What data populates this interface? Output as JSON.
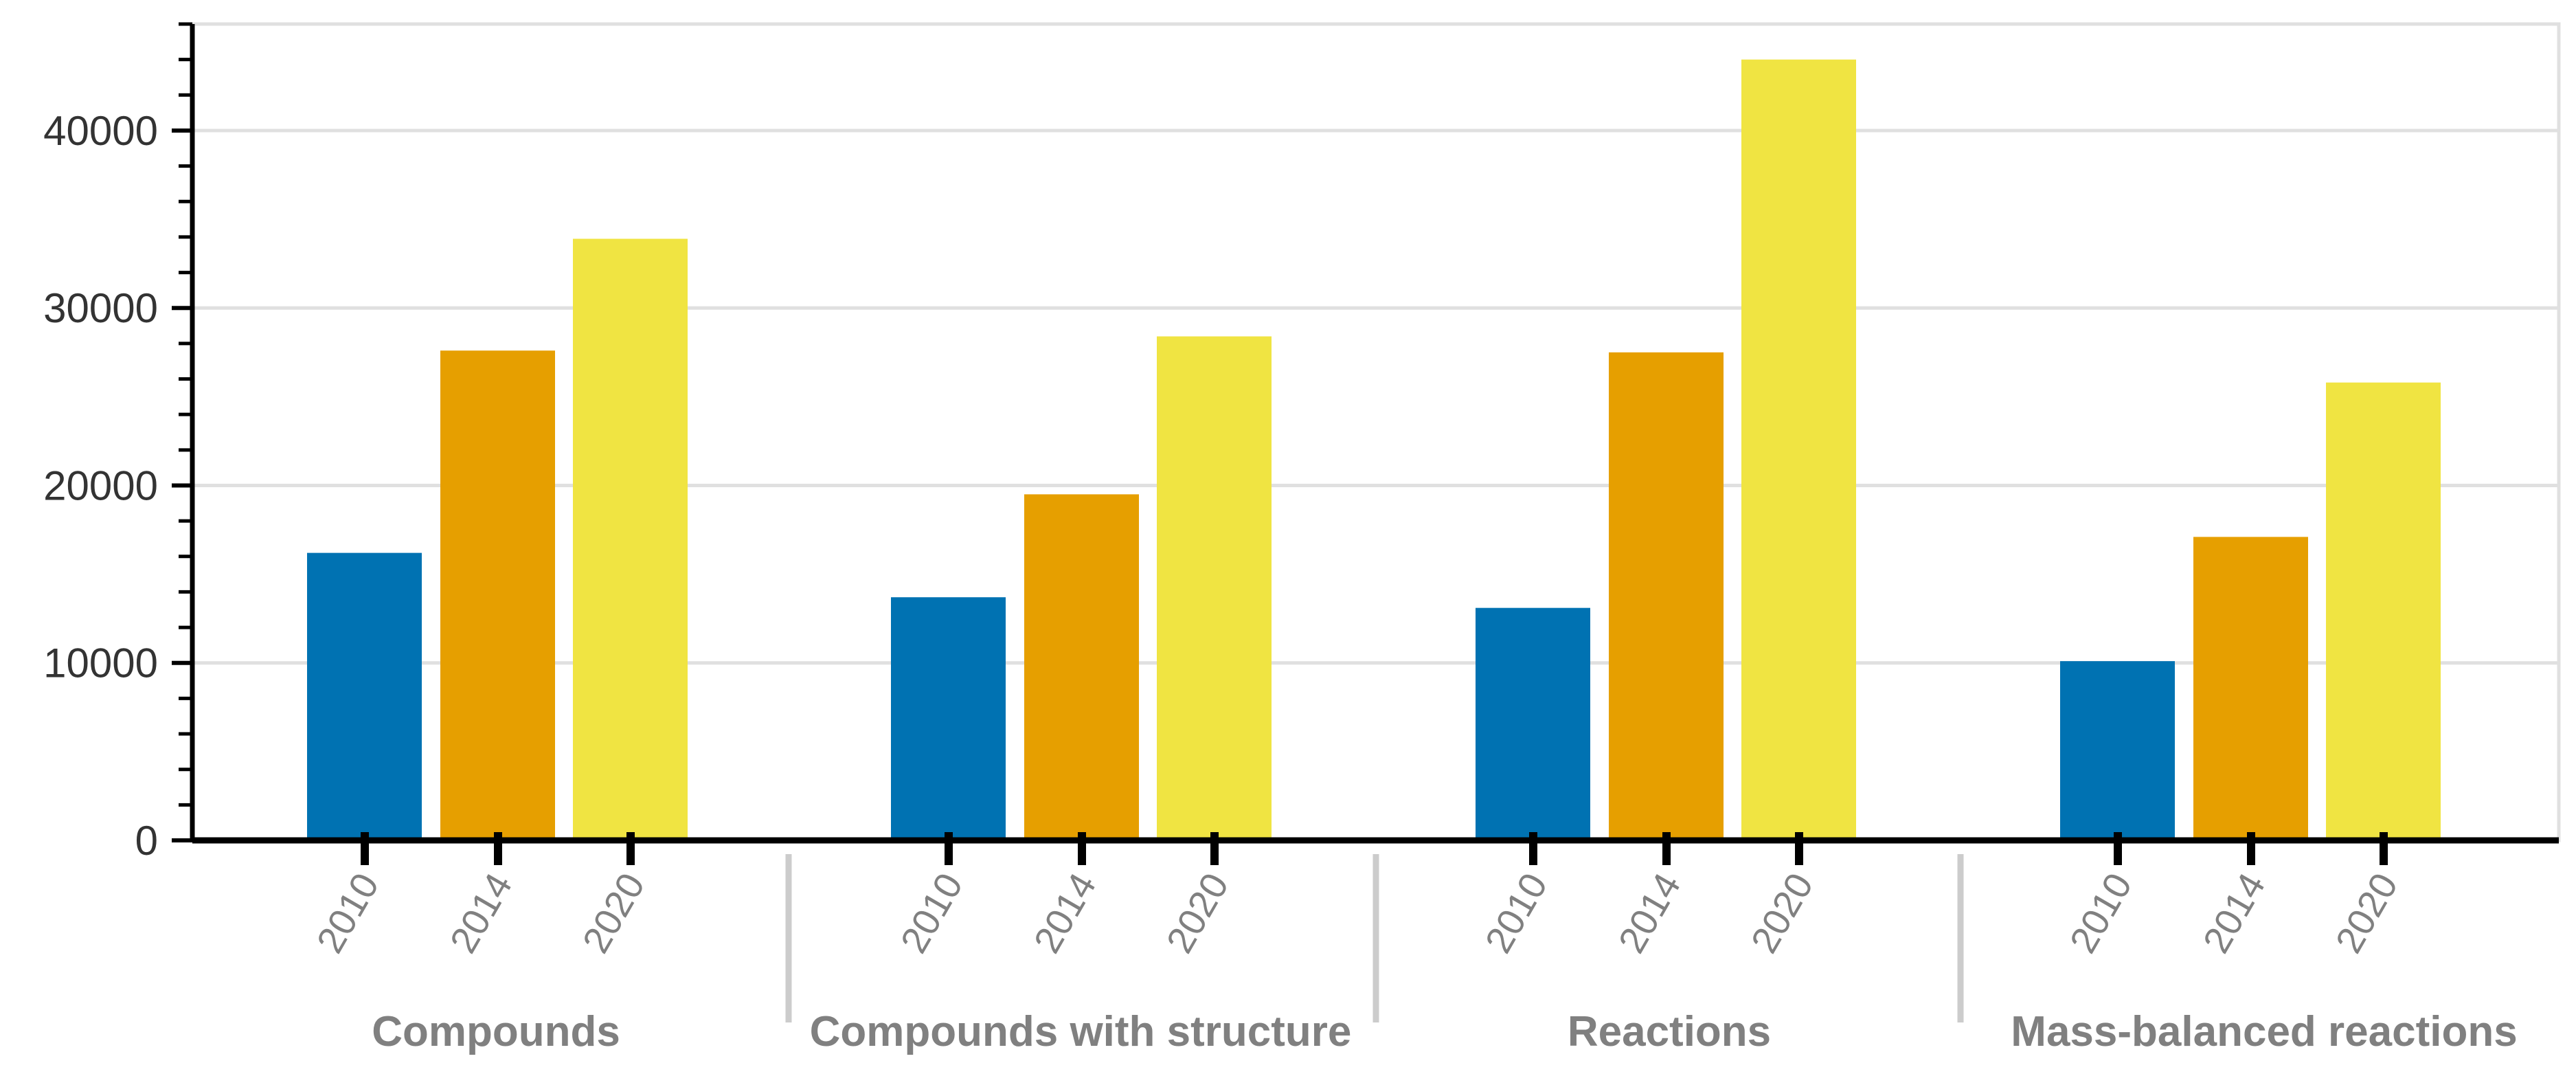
{
  "chart_data": {
    "type": "bar",
    "groups": [
      "Compounds",
      "Compounds with structure",
      "Reactions",
      "Mass-balanced reactions"
    ],
    "sub_categories": [
      "2010",
      "2014",
      "2020"
    ],
    "series": [
      {
        "values": [
          16200,
          13700,
          13100,
          10100
        ],
        "color": "#0072b2"
      },
      {
        "values": [
          27600,
          19500,
          27500,
          17100
        ],
        "color": "#e69f00"
      },
      {
        "values": [
          33900,
          28400,
          44000,
          25800
        ],
        "color": "#f0e442"
      }
    ],
    "ylim": [
      0,
      46000
    ],
    "yticks": [
      "0",
      "10000",
      "20000",
      "30000",
      "40000"
    ],
    "ytick_values": [
      0,
      10000,
      20000,
      30000,
      40000
    ],
    "grid": true,
    "title": "",
    "xlabel": "",
    "ylabel": ""
  }
}
